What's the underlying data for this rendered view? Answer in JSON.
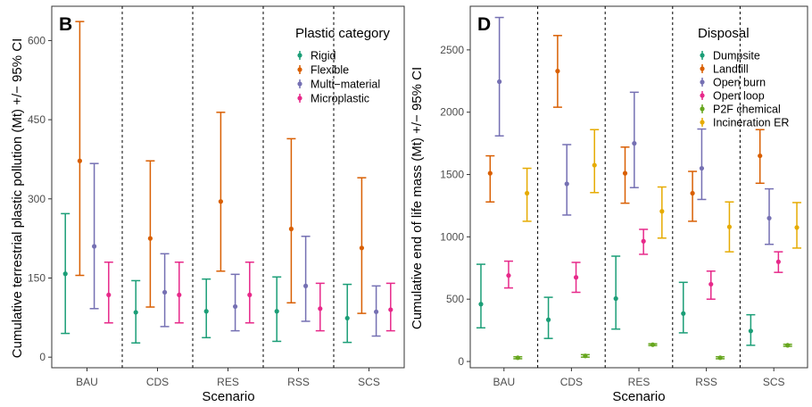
{
  "chart_data": [
    {
      "type": "scatter",
      "error_bars": true,
      "panel_label": "B",
      "xlabel": "Scenario",
      "ylabel": "Cumulative terrestrial plastic pollution (Mt) +/− 95% CI",
      "categories": [
        "BAU",
        "CDS",
        "RES",
        "RSS",
        "SCS"
      ],
      "ylim": [
        -20,
        665
      ],
      "yticks": [
        0,
        150,
        300,
        450,
        600
      ],
      "legend": {
        "title": "Plastic category",
        "position": "top-right"
      },
      "grid": false,
      "series": [
        {
          "name": "Rigid",
          "color": "#1b9e77",
          "values": [
            158,
            85,
            87,
            87,
            74
          ],
          "lower": [
            45,
            27,
            37,
            30,
            28
          ],
          "upper": [
            272,
            145,
            148,
            152,
            138
          ]
        },
        {
          "name": "Flexible",
          "color": "#d95f02",
          "values": [
            372,
            225,
            295,
            243,
            207
          ],
          "lower": [
            155,
            95,
            163,
            103,
            83
          ],
          "upper": [
            636,
            372,
            464,
            414,
            340
          ]
        },
        {
          "name": "Multi−material",
          "color": "#7570b3",
          "values": [
            210,
            123,
            96,
            135,
            86
          ],
          "lower": [
            92,
            58,
            50,
            68,
            40
          ],
          "upper": [
            367,
            196,
            157,
            229,
            135
          ]
        },
        {
          "name": "Microplastic",
          "color": "#e7298a",
          "values": [
            118,
            118,
            118,
            92,
            90
          ],
          "lower": [
            65,
            65,
            65,
            50,
            50
          ],
          "upper": [
            180,
            180,
            180,
            140,
            140
          ]
        }
      ]
    },
    {
      "type": "scatter",
      "error_bars": true,
      "panel_label": "D",
      "xlabel": "Scenario",
      "ylabel": "Cumulative end of life mass (Mt) +/− 95% CI",
      "categories": [
        "BAU",
        "CDS",
        "RES",
        "RSS",
        "SCS"
      ],
      "ylim": [
        -50,
        2850
      ],
      "yticks": [
        0,
        500,
        1000,
        1500,
        2000,
        2500
      ],
      "legend": {
        "title": "Disposal",
        "position": "top-right"
      },
      "grid": false,
      "series": [
        {
          "name": "Dumpsite",
          "color": "#1b9e77",
          "values": [
            460,
            335,
            505,
            385,
            245
          ],
          "lower": [
            270,
            185,
            260,
            230,
            130
          ],
          "upper": [
            780,
            515,
            845,
            635,
            375
          ]
        },
        {
          "name": "Landfill",
          "color": "#d95f02",
          "values": [
            1510,
            2330,
            1510,
            1350,
            1650
          ],
          "lower": [
            1280,
            2040,
            1270,
            1125,
            1430
          ],
          "upper": [
            1650,
            2615,
            1720,
            1525,
            1860
          ]
        },
        {
          "name": "Open burn",
          "color": "#7570b3",
          "values": [
            2245,
            1425,
            1750,
            1550,
            1150
          ],
          "lower": [
            1810,
            1175,
            1395,
            1300,
            940
          ],
          "upper": [
            2760,
            1740,
            2160,
            1865,
            1385
          ]
        },
        {
          "name": "Open loop",
          "color": "#e7298a",
          "values": [
            690,
            675,
            965,
            620,
            800
          ],
          "lower": [
            590,
            555,
            860,
            500,
            715
          ],
          "upper": [
            805,
            795,
            1060,
            725,
            880
          ]
        },
        {
          "name": "P2F chemical",
          "color": "#66a61e",
          "values": [
            30,
            45,
            135,
            30,
            130
          ],
          "lower": [
            22,
            35,
            128,
            22,
            122
          ],
          "upper": [
            38,
            55,
            142,
            38,
            138
          ]
        },
        {
          "name": "Incineration ER",
          "color": "#e6ab02",
          "values": [
            1350,
            1575,
            1205,
            1080,
            1075
          ],
          "lower": [
            1125,
            1355,
            990,
            880,
            910
          ],
          "upper": [
            1550,
            1860,
            1400,
            1280,
            1275
          ]
        }
      ]
    }
  ]
}
